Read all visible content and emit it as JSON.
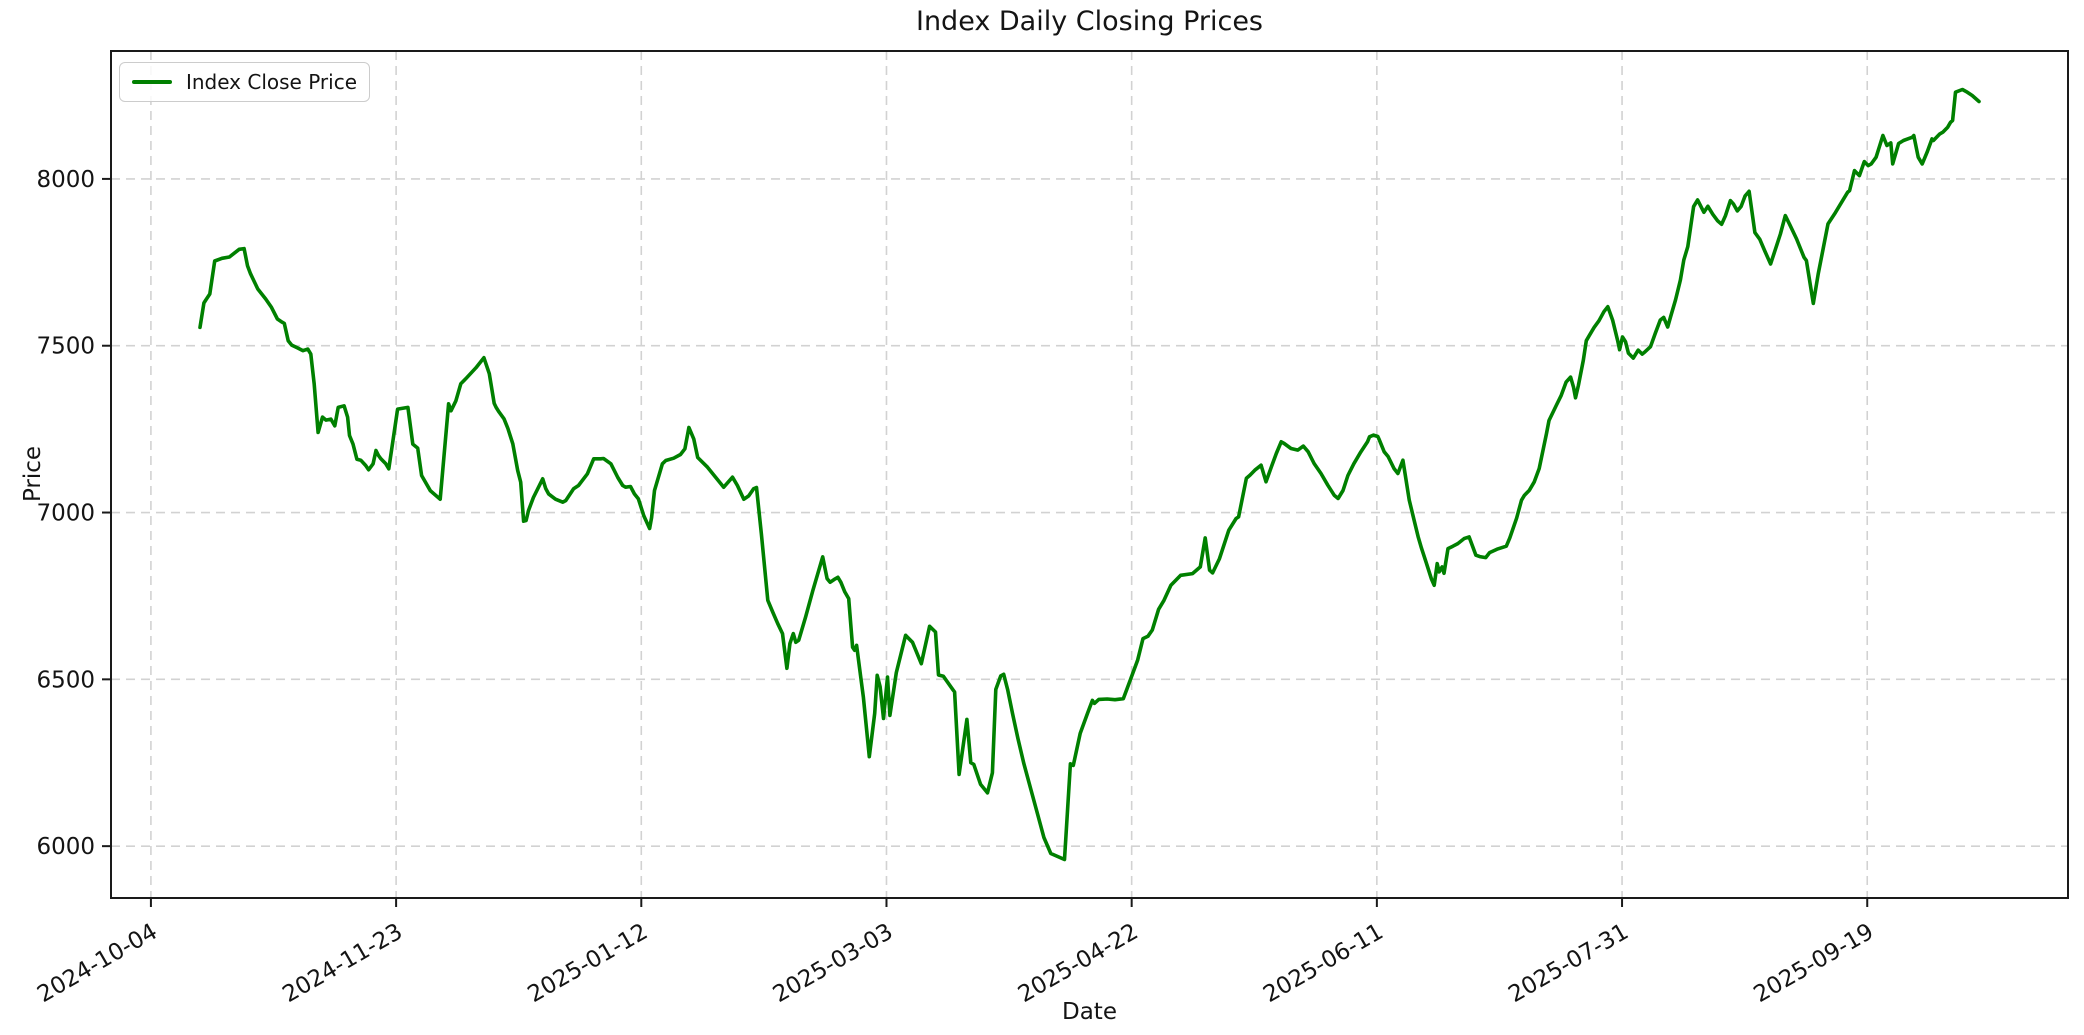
{
  "chart_data": {
    "type": "line",
    "title": "Index Daily Closing Prices",
    "xlabel": "Date",
    "ylabel": "Price",
    "legend_label": "Index Close Price",
    "legend_position": "upper left",
    "grid": true,
    "background_color": "#ffffff",
    "line_color": "#008000",
    "grid_color": "#d2d2d2",
    "spine_color": "#1a1a1a",
    "text_color": "#141414",
    "y_ticks": [
      6000,
      6500,
      7000,
      7500,
      8000
    ],
    "x_axis_base_date": "2024-10-04",
    "x_ticks": [
      {
        "day": 0,
        "label": "2024-10-04"
      },
      {
        "day": 50,
        "label": "2024-11-23"
      },
      {
        "day": 100,
        "label": "2025-01-12"
      },
      {
        "day": 150,
        "label": "2025-03-03"
      },
      {
        "day": 200,
        "label": "2025-04-22"
      },
      {
        "day": 250,
        "label": "2025-06-11"
      },
      {
        "day": 300,
        "label": "2025-07-31"
      },
      {
        "day": 350,
        "label": "2025-09-19"
      }
    ],
    "points": [
      [
        10,
        7555
      ],
      [
        10.8,
        7628
      ],
      [
        11.2,
        7637
      ],
      [
        12,
        7655
      ],
      [
        13,
        7754
      ],
      [
        14.5,
        7762
      ],
      [
        16,
        7766
      ],
      [
        18,
        7789
      ],
      [
        19,
        7791
      ],
      [
        19.7,
        7740
      ],
      [
        20.3,
        7716
      ],
      [
        21.8,
        7670
      ],
      [
        23.4,
        7640
      ],
      [
        24.6,
        7615
      ],
      [
        25.8,
        7580
      ],
      [
        26.5,
        7573
      ],
      [
        27.2,
        7567
      ],
      [
        28,
        7515
      ],
      [
        28.7,
        7502
      ],
      [
        30,
        7493
      ],
      [
        31,
        7485
      ],
      [
        32,
        7490
      ],
      [
        32.6,
        7475
      ],
      [
        33.3,
        7385
      ],
      [
        34.1,
        7240
      ],
      [
        35,
        7286
      ],
      [
        35.7,
        7277
      ],
      [
        36.7,
        7280
      ],
      [
        37.5,
        7260
      ],
      [
        38.2,
        7315
      ],
      [
        39.4,
        7320
      ],
      [
        40.1,
        7286
      ],
      [
        40.5,
        7231
      ],
      [
        41.2,
        7205
      ],
      [
        42,
        7160
      ],
      [
        42.8,
        7157
      ],
      [
        43.8,
        7141
      ],
      [
        44.4,
        7128
      ],
      [
        45.3,
        7146
      ],
      [
        45.9,
        7186
      ],
      [
        46.4,
        7171
      ],
      [
        46.9,
        7161
      ],
      [
        47.9,
        7146
      ],
      [
        48.5,
        7131
      ],
      [
        50.3,
        7310
      ],
      [
        52.4,
        7315
      ],
      [
        53.4,
        7205
      ],
      [
        54.4,
        7193
      ],
      [
        55.2,
        7111
      ],
      [
        57,
        7065
      ],
      [
        59,
        7040
      ],
      [
        60.7,
        7326
      ],
      [
        61.2,
        7305
      ],
      [
        62.2,
        7335
      ],
      [
        63.2,
        7386
      ],
      [
        64.2,
        7401
      ],
      [
        66.3,
        7434
      ],
      [
        67.9,
        7464
      ],
      [
        69,
        7416
      ],
      [
        70,
        7327
      ],
      [
        70.4,
        7315
      ],
      [
        71,
        7301
      ],
      [
        72,
        7281
      ],
      [
        72.8,
        7252
      ],
      [
        73.8,
        7206
      ],
      [
        74.8,
        7126
      ],
      [
        75.4,
        7091
      ],
      [
        76,
        6974
      ],
      [
        76.5,
        6976
      ],
      [
        77,
        7006
      ],
      [
        78,
        7045
      ],
      [
        79.9,
        7101
      ],
      [
        80.5,
        7072
      ],
      [
        81.1,
        7056
      ],
      [
        82.5,
        7040
      ],
      [
        84,
        7031
      ],
      [
        84.6,
        7036
      ],
      [
        86.2,
        7071
      ],
      [
        87.2,
        7081
      ],
      [
        89,
        7116
      ],
      [
        90.3,
        7161
      ],
      [
        91.7,
        7161
      ],
      [
        92.3,
        7162
      ],
      [
        93.8,
        7146
      ],
      [
        95.2,
        7105
      ],
      [
        96.2,
        7081
      ],
      [
        96.8,
        7076
      ],
      [
        97.8,
        7078
      ],
      [
        98.6,
        7056
      ],
      [
        99.4,
        7041
      ],
      [
        100.5,
        6991
      ],
      [
        101.7,
        6952
      ],
      [
        102.1,
        6985
      ],
      [
        102.7,
        7066
      ],
      [
        104.3,
        7146
      ],
      [
        105,
        7156
      ],
      [
        106.6,
        7163
      ],
      [
        108,
        7174
      ],
      [
        108.9,
        7191
      ],
      [
        109.7,
        7255
      ],
      [
        110.7,
        7220
      ],
      [
        111.5,
        7165
      ],
      [
        113.5,
        7136
      ],
      [
        115.2,
        7105
      ],
      [
        116.8,
        7076
      ],
      [
        118.6,
        7106
      ],
      [
        119.6,
        7081
      ],
      [
        120.9,
        7040
      ],
      [
        121.9,
        7050
      ],
      [
        122.9,
        7071
      ],
      [
        123.5,
        7075
      ],
      [
        124.5,
        6935
      ],
      [
        125.8,
        6737
      ],
      [
        126.8,
        6702
      ],
      [
        127.8,
        6668
      ],
      [
        128.8,
        6637
      ],
      [
        129.7,
        6533
      ],
      [
        130.3,
        6607
      ],
      [
        131,
        6637
      ],
      [
        131.5,
        6611
      ],
      [
        132.1,
        6617
      ],
      [
        133.5,
        6687
      ],
      [
        135,
        6767
      ],
      [
        136,
        6817
      ],
      [
        137,
        6867
      ],
      [
        137.4,
        6837
      ],
      [
        137.9,
        6802
      ],
      [
        138.5,
        6791
      ],
      [
        139.3,
        6799
      ],
      [
        140.1,
        6806
      ],
      [
        140.7,
        6791
      ],
      [
        141.5,
        6762
      ],
      [
        142.3,
        6742
      ],
      [
        143.1,
        6596
      ],
      [
        143.5,
        6587
      ],
      [
        143.9,
        6602
      ],
      [
        144.7,
        6512
      ],
      [
        145.3,
        6446
      ],
      [
        146.5,
        6268
      ],
      [
        147.6,
        6398
      ],
      [
        148.1,
        6512
      ],
      [
        148.7,
        6478
      ],
      [
        149.4,
        6383
      ],
      [
        150.2,
        6507
      ],
      [
        150.7,
        6392
      ],
      [
        152,
        6520
      ],
      [
        153.9,
        6632
      ],
      [
        155.3,
        6611
      ],
      [
        157.1,
        6547
      ],
      [
        158.8,
        6659
      ],
      [
        160,
        6642
      ],
      [
        160.6,
        6513
      ],
      [
        161.6,
        6509
      ],
      [
        163.5,
        6470
      ],
      [
        163.9,
        6462
      ],
      [
        164.8,
        6215
      ],
      [
        166.4,
        6380
      ],
      [
        167.2,
        6250
      ],
      [
        167.8,
        6245
      ],
      [
        169.2,
        6185
      ],
      [
        170.6,
        6160
      ],
      [
        171.6,
        6220
      ],
      [
        172.3,
        6470
      ],
      [
        173.3,
        6510
      ],
      [
        173.9,
        6515
      ],
      [
        174.7,
        6470
      ],
      [
        175.7,
        6398
      ],
      [
        176.8,
        6323
      ],
      [
        178,
        6248
      ],
      [
        179.4,
        6172
      ],
      [
        180.8,
        6097
      ],
      [
        182.1,
        6026
      ],
      [
        183.5,
        5978
      ],
      [
        186.3,
        5960
      ],
      [
        187.5,
        6247
      ],
      [
        188.1,
        6242
      ],
      [
        189.5,
        6338
      ],
      [
        191,
        6398
      ],
      [
        192,
        6437
      ],
      [
        192.4,
        6428
      ],
      [
        193.3,
        6440
      ],
      [
        195,
        6441
      ],
      [
        196.6,
        6439
      ],
      [
        198.3,
        6442
      ],
      [
        199.7,
        6497
      ],
      [
        201.2,
        6557
      ],
      [
        202.3,
        6622
      ],
      [
        203.3,
        6629
      ],
      [
        204.2,
        6648
      ],
      [
        205.5,
        6710
      ],
      [
        206.6,
        6737
      ],
      [
        208,
        6782
      ],
      [
        210,
        6812
      ],
      [
        212.4,
        6817
      ],
      [
        214,
        6837
      ],
      [
        215,
        6924
      ],
      [
        215.9,
        6827
      ],
      [
        216.5,
        6819
      ],
      [
        217.9,
        6862
      ],
      [
        219.8,
        6947
      ],
      [
        221.3,
        6982
      ],
      [
        221.8,
        6987
      ],
      [
        223.4,
        7103
      ],
      [
        224.1,
        7112
      ],
      [
        225.1,
        7127
      ],
      [
        226.4,
        7142
      ],
      [
        227.4,
        7092
      ],
      [
        228.5,
        7137
      ],
      [
        229.5,
        7177
      ],
      [
        230.5,
        7212
      ],
      [
        231.1,
        7207
      ],
      [
        232.5,
        7192
      ],
      [
        233.9,
        7187
      ],
      [
        235,
        7199
      ],
      [
        236,
        7182
      ],
      [
        237.2,
        7147
      ],
      [
        238.6,
        7117
      ],
      [
        240,
        7082
      ],
      [
        241.3,
        7052
      ],
      [
        242.1,
        7042
      ],
      [
        243.1,
        7066
      ],
      [
        244.1,
        7111
      ],
      [
        245.3,
        7146
      ],
      [
        246.7,
        7181
      ],
      [
        248.1,
        7212
      ],
      [
        248.5,
        7227
      ],
      [
        249.3,
        7232
      ],
      [
        250.2,
        7228
      ],
      [
        250.5,
        7218
      ],
      [
        251.5,
        7182
      ],
      [
        252.3,
        7168
      ],
      [
        253.5,
        7132
      ],
      [
        254.3,
        7117
      ],
      [
        255.3,
        7157
      ],
      [
        255.8,
        7112
      ],
      [
        256.6,
        7038
      ],
      [
        257.6,
        6977
      ],
      [
        258.4,
        6928
      ],
      [
        259.1,
        6893
      ],
      [
        260.1,
        6848
      ],
      [
        261.1,
        6802
      ],
      [
        261.7,
        6782
      ],
      [
        262.3,
        6847
      ],
      [
        262.7,
        6822
      ],
      [
        263.3,
        6837
      ],
      [
        263.7,
        6818
      ],
      [
        264.5,
        6892
      ],
      [
        265.5,
        6899
      ],
      [
        266.5,
        6907
      ],
      [
        267.8,
        6922
      ],
      [
        268.8,
        6927
      ],
      [
        270.2,
        6872
      ],
      [
        271,
        6868
      ],
      [
        272.2,
        6865
      ],
      [
        273,
        6880
      ],
      [
        274.5,
        6890
      ],
      [
        276.4,
        6899
      ],
      [
        277.1,
        6924
      ],
      [
        278.5,
        6983
      ],
      [
        279.5,
        7037
      ],
      [
        280.1,
        7052
      ],
      [
        281.1,
        7067
      ],
      [
        282.1,
        7092
      ],
      [
        283.1,
        7132
      ],
      [
        284.6,
        7237
      ],
      [
        285.1,
        7276
      ],
      [
        286.6,
        7321
      ],
      [
        287.6,
        7351
      ],
      [
        288.6,
        7391
      ],
      [
        289.5,
        7406
      ],
      [
        290.1,
        7376
      ],
      [
        290.5,
        7344
      ],
      [
        291.1,
        7381
      ],
      [
        292.1,
        7456
      ],
      [
        292.7,
        7515
      ],
      [
        293.3,
        7530
      ],
      [
        294.3,
        7555
      ],
      [
        295.3,
        7575
      ],
      [
        296.3,
        7602
      ],
      [
        297.1,
        7617
      ],
      [
        298.1,
        7576
      ],
      [
        299.1,
        7516
      ],
      [
        299.5,
        7488
      ],
      [
        300.1,
        7526
      ],
      [
        300.7,
        7512
      ],
      [
        301.3,
        7478
      ],
      [
        302.3,
        7463
      ],
      [
        303.3,
        7487
      ],
      [
        304.1,
        7475
      ],
      [
        304.7,
        7482
      ],
      [
        305.8,
        7497
      ],
      [
        306.8,
        7538
      ],
      [
        307.8,
        7577
      ],
      [
        308.5,
        7585
      ],
      [
        309.3,
        7556
      ],
      [
        309.9,
        7587
      ],
      [
        310.9,
        7637
      ],
      [
        311.9,
        7697
      ],
      [
        312.6,
        7757
      ],
      [
        313.4,
        7797
      ],
      [
        314,
        7857
      ],
      [
        314.6,
        7917
      ],
      [
        315.4,
        7937
      ],
      [
        316.4,
        7908
      ],
      [
        316.7,
        7900
      ],
      [
        317.5,
        7918
      ],
      [
        318.5,
        7894
      ],
      [
        319.5,
        7874
      ],
      [
        320.3,
        7864
      ],
      [
        321.1,
        7890
      ],
      [
        322.1,
        7935
      ],
      [
        322.7,
        7925
      ],
      [
        323.5,
        7904
      ],
      [
        324.3,
        7918
      ],
      [
        325.1,
        7949
      ],
      [
        325.9,
        7963
      ],
      [
        327.1,
        7839
      ],
      [
        328.1,
        7819
      ],
      [
        329.1,
        7784
      ],
      [
        330.3,
        7745
      ],
      [
        331.3,
        7790
      ],
      [
        332.3,
        7835
      ],
      [
        333.3,
        7890
      ],
      [
        334.3,
        7860
      ],
      [
        335.6,
        7820
      ],
      [
        337.1,
        7765
      ],
      [
        337.6,
        7755
      ],
      [
        339,
        7627
      ],
      [
        340,
        7715
      ],
      [
        341,
        7790
      ],
      [
        342,
        7865
      ],
      [
        343.5,
        7899
      ],
      [
        346,
        7960
      ],
      [
        346.4,
        7965
      ],
      [
        347.4,
        8025
      ],
      [
        348.4,
        8010
      ],
      [
        349.4,
        8052
      ],
      [
        350.2,
        8040
      ],
      [
        350.8,
        8045
      ],
      [
        351.8,
        8065
      ],
      [
        353.2,
        8130
      ],
      [
        354,
        8100
      ],
      [
        354.8,
        8108
      ],
      [
        355.2,
        8045
      ],
      [
        356.4,
        8106
      ],
      [
        357.4,
        8115
      ],
      [
        359.2,
        8125
      ],
      [
        359.5,
        8130
      ],
      [
        360.4,
        8065
      ],
      [
        361.2,
        8045
      ],
      [
        362.2,
        8080
      ],
      [
        363.2,
        8120
      ],
      [
        363.5,
        8115
      ],
      [
        364.8,
        8135
      ],
      [
        365.4,
        8140
      ],
      [
        366.4,
        8155
      ],
      [
        367,
        8170
      ],
      [
        367.4,
        8175
      ],
      [
        368,
        8260
      ],
      [
        369.4,
        8268
      ],
      [
        370.4,
        8260
      ],
      [
        371.4,
        8250
      ],
      [
        372.8,
        8232
      ]
    ]
  }
}
